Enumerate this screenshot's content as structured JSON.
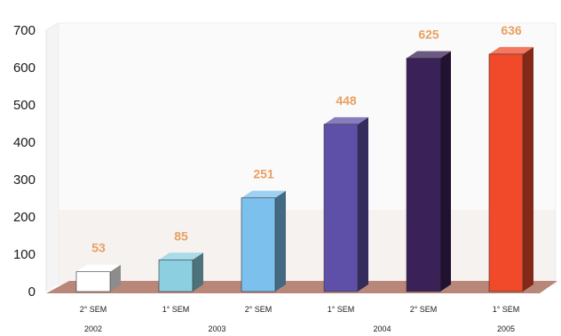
{
  "chart_data": {
    "type": "bar",
    "categories": [
      "2° SEM",
      "1° SEM",
      "2° SEM",
      "1° SEM",
      "2° SEM",
      "1° SEM"
    ],
    "years": [
      {
        "label": "2002",
        "bar": 0
      },
      {
        "label": "2003",
        "bar": 1.5
      },
      {
        "label": "2004",
        "bar": 3.5
      },
      {
        "label": "2005",
        "bar": 5
      }
    ],
    "values": [
      53,
      85,
      251,
      448,
      625,
      636
    ],
    "value_labels": [
      "53",
      "85",
      "251",
      "448",
      "625",
      "636"
    ],
    "colors": [
      "#ffffff",
      "#8ccfe0",
      "#7cc0ee",
      "#5e50a8",
      "#3a2158",
      "#f04a2a"
    ],
    "y_ticks": [
      "0",
      "100",
      "200",
      "300",
      "400",
      "500",
      "600",
      "700"
    ],
    "ylim": [
      0,
      700
    ],
    "grid": false,
    "floor_color": "#b8877a"
  }
}
